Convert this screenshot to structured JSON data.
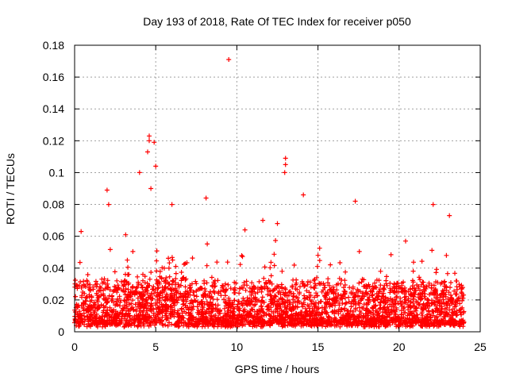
{
  "chart_data": {
    "type": "scatter",
    "title": "Day 193 of 2018, Rate Of TEC Index for receiver p050",
    "xlabel": "GPS time / hours",
    "ylabel": "ROTI / TECUs",
    "xlim": [
      0,
      25
    ],
    "ylim": [
      0,
      0.18
    ],
    "x_ticks": [
      0,
      5,
      10,
      15,
      20,
      25
    ],
    "x_tick_labels": [
      "0",
      "5",
      "10",
      "15",
      "20",
      "25"
    ],
    "y_ticks": [
      0,
      0.02,
      0.04,
      0.06,
      0.08,
      0.1,
      0.12,
      0.14,
      0.16,
      0.18
    ],
    "y_tick_labels": [
      "0",
      "0.02",
      "0.04",
      "0.06",
      "0.08",
      "0.1",
      "0.12",
      "0.14",
      "0.16",
      "0.18"
    ],
    "grid": true,
    "marker": "+",
    "color": "#ff0000",
    "series": [
      {
        "name": "ROTI",
        "x_range": [
          0,
          24
        ],
        "typical_y_range": [
          0.003,
          0.03
        ],
        "notable_points": [
          {
            "x": 9.5,
            "y": 0.171
          },
          {
            "x": 4.6,
            "y": 0.123
          },
          {
            "x": 4.6,
            "y": 0.12
          },
          {
            "x": 4.9,
            "y": 0.119
          },
          {
            "x": 4.5,
            "y": 0.113
          },
          {
            "x": 13.0,
            "y": 0.109
          },
          {
            "x": 13.0,
            "y": 0.105
          },
          {
            "x": 5.0,
            "y": 0.104
          },
          {
            "x": 4.0,
            "y": 0.1
          },
          {
            "x": 12.95,
            "y": 0.1
          },
          {
            "x": 4.7,
            "y": 0.09
          },
          {
            "x": 2.0,
            "y": 0.089
          },
          {
            "x": 14.1,
            "y": 0.086
          },
          {
            "x": 8.1,
            "y": 0.084
          },
          {
            "x": 17.3,
            "y": 0.082
          },
          {
            "x": 22.1,
            "y": 0.08
          },
          {
            "x": 2.1,
            "y": 0.08
          },
          {
            "x": 6.0,
            "y": 0.08
          },
          {
            "x": 23.1,
            "y": 0.073
          },
          {
            "x": 11.6,
            "y": 0.07
          },
          {
            "x": 12.5,
            "y": 0.068
          },
          {
            "x": 0.4,
            "y": 0.063
          },
          {
            "x": 10.5,
            "y": 0.064
          },
          {
            "x": 20.4,
            "y": 0.057
          },
          {
            "x": 15.0,
            "y": 0.048
          }
        ]
      }
    ]
  }
}
